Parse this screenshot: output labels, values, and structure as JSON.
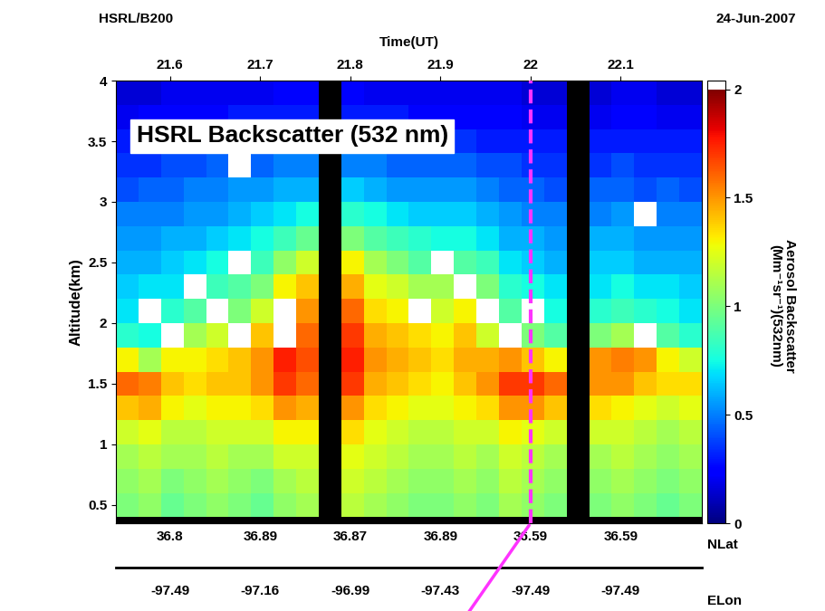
{
  "chart_data": {
    "type": "heatmap",
    "title": "HSRL Backscatter (532 nm)",
    "top_left_text": "HSRL/B200",
    "xlabel": "Time(UT)",
    "date": "24-Jun-2007",
    "ylabel": "Altitude(km)",
    "colorbar_label": "Aerosol Backscatter\n(Mm⁻¹sr⁻¹)(532nm)",
    "xlim": [
      21.54,
      22.19
    ],
    "xticks": [
      21.6,
      21.7,
      21.8,
      21.9,
      22,
      22.1
    ],
    "ylim": [
      0.35,
      4
    ],
    "yticks": [
      0.5,
      1,
      1.5,
      2,
      2.5,
      3,
      3.5,
      4
    ],
    "color_range": [
      0,
      2
    ],
    "color_ticks": [
      0,
      0.5,
      1,
      1.5,
      2
    ],
    "lat_label": "NLat",
    "lat_ticks": [
      {
        "value": 21.6,
        "label": "36.8"
      },
      {
        "value": 21.7,
        "label": "36.89"
      },
      {
        "value": 21.8,
        "label": "36.87"
      },
      {
        "value": 21.9,
        "label": "36.89"
      },
      {
        "value": 22,
        "label": "36.59"
      },
      {
        "value": 22.1,
        "label": "36.59"
      }
    ],
    "lon_label": "ELon",
    "lon_ticks": [
      {
        "value": 21.6,
        "label": "-97.49"
      },
      {
        "value": 21.7,
        "label": "-97.16"
      },
      {
        "value": 21.8,
        "label": "-96.99"
      },
      {
        "value": 21.9,
        "label": "-97.43"
      },
      {
        "value": 22,
        "label": "-97.49"
      },
      {
        "value": 22.1,
        "label": "-97.49"
      }
    ],
    "highlight_time": 22,
    "x_edges": [
      21.54,
      21.565,
      21.59,
      21.615,
      21.64,
      21.665,
      21.69,
      21.715,
      21.74,
      21.765,
      21.79,
      21.815,
      21.84,
      21.865,
      21.89,
      21.915,
      21.94,
      21.965,
      21.99,
      22.015,
      22.04,
      22.065,
      22.09,
      22.115,
      22.14,
      22.165,
      22.19
    ],
    "y_edges": [
      0.4,
      0.6,
      0.8,
      1.0,
      1.2,
      1.4,
      1.6,
      1.8,
      2.0,
      2.2,
      2.4,
      2.6,
      2.8,
      3.0,
      3.2,
      3.4,
      3.6,
      3.8,
      4.0
    ],
    "cells": [
      [
        1.0,
        1.05,
        0.95,
        1.0,
        1.05,
        1.0,
        0.95,
        1.05,
        1.1,
        null,
        1.15,
        1.1,
        1.05,
        1.0,
        1.0,
        1.05,
        1.0,
        1.1,
        1.05,
        1.0,
        null,
        1.0,
        1.05,
        1.0,
        0.95,
        1.0
      ],
      [
        1.05,
        1.1,
        1.0,
        1.05,
        1.1,
        1.05,
        1.0,
        1.1,
        1.15,
        null,
        1.2,
        1.15,
        1.1,
        1.05,
        1.05,
        1.1,
        1.05,
        1.15,
        1.1,
        1.05,
        null,
        1.05,
        1.1,
        1.05,
        1.0,
        1.05
      ],
      [
        1.1,
        1.15,
        1.1,
        1.1,
        1.15,
        1.1,
        1.1,
        1.2,
        1.2,
        null,
        1.25,
        1.2,
        1.15,
        1.1,
        1.1,
        1.15,
        1.1,
        1.2,
        1.15,
        1.1,
        null,
        1.1,
        1.15,
        1.1,
        1.05,
        1.1
      ],
      [
        1.2,
        1.25,
        1.15,
        1.15,
        1.2,
        1.2,
        1.2,
        1.3,
        1.3,
        null,
        1.35,
        1.25,
        1.2,
        1.15,
        1.15,
        1.2,
        1.2,
        1.3,
        1.25,
        1.2,
        null,
        1.2,
        1.2,
        1.15,
        1.1,
        1.15
      ],
      [
        1.4,
        1.45,
        1.3,
        1.25,
        1.3,
        1.3,
        1.35,
        1.5,
        1.45,
        null,
        1.5,
        1.35,
        1.3,
        1.25,
        1.25,
        1.3,
        1.35,
        1.5,
        1.5,
        1.4,
        null,
        1.35,
        1.3,
        1.25,
        1.2,
        1.25
      ],
      [
        1.6,
        1.55,
        1.4,
        1.35,
        1.4,
        1.4,
        1.5,
        1.7,
        1.6,
        null,
        1.7,
        1.45,
        1.4,
        1.35,
        1.3,
        1.4,
        1.5,
        1.7,
        1.7,
        1.6,
        null,
        1.5,
        1.5,
        1.4,
        1.35,
        1.35
      ],
      [
        1.3,
        1.1,
        1.3,
        1.3,
        1.35,
        1.4,
        1.5,
        1.75,
        1.65,
        null,
        1.75,
        1.5,
        1.45,
        1.4,
        1.35,
        1.45,
        1.45,
        1.5,
        1.4,
        1.3,
        null,
        1.5,
        1.55,
        1.5,
        1.3,
        1.2
      ],
      [
        0.8,
        0.75,
        2.5,
        1.1,
        1.2,
        2.5,
        1.4,
        2.5,
        1.6,
        null,
        1.7,
        1.45,
        1.4,
        1.35,
        1.3,
        1.4,
        1.2,
        2.5,
        1.0,
        0.9,
        null,
        1.0,
        1.1,
        2.5,
        0.9,
        0.8
      ],
      [
        0.7,
        2.5,
        0.8,
        0.9,
        2.5,
        1.0,
        1.2,
        2.5,
        1.5,
        null,
        1.6,
        1.35,
        1.3,
        2.5,
        1.2,
        1.3,
        2.5,
        0.9,
        2.5,
        0.75,
        null,
        0.8,
        0.85,
        0.8,
        0.75,
        0.7
      ],
      [
        0.65,
        0.7,
        0.7,
        2.5,
        0.85,
        0.9,
        1.0,
        1.3,
        1.4,
        null,
        1.45,
        1.25,
        1.2,
        1.1,
        1.1,
        2.5,
        1.0,
        0.8,
        0.75,
        0.7,
        null,
        0.7,
        0.75,
        0.7,
        0.7,
        0.65
      ],
      [
        0.6,
        0.6,
        0.65,
        0.7,
        0.75,
        2.5,
        0.85,
        1.05,
        1.2,
        null,
        1.3,
        1.1,
        1.0,
        0.9,
        2.5,
        0.9,
        0.85,
        0.7,
        0.65,
        0.6,
        null,
        0.65,
        0.65,
        0.6,
        0.6,
        0.6
      ],
      [
        0.55,
        0.55,
        0.6,
        0.6,
        0.65,
        0.7,
        0.75,
        0.85,
        0.95,
        null,
        1.0,
        0.9,
        0.85,
        0.8,
        0.75,
        0.75,
        0.7,
        0.6,
        0.6,
        0.55,
        null,
        0.6,
        0.6,
        0.55,
        0.55,
        0.55
      ],
      [
        0.5,
        0.5,
        0.5,
        0.55,
        0.55,
        0.6,
        0.65,
        0.7,
        0.75,
        null,
        0.8,
        0.75,
        0.7,
        0.65,
        0.65,
        0.65,
        0.6,
        0.55,
        0.5,
        0.5,
        null,
        0.5,
        0.55,
        2.5,
        0.5,
        0.5
      ],
      [
        0.4,
        0.45,
        0.45,
        0.5,
        0.5,
        0.55,
        0.55,
        0.6,
        0.6,
        null,
        0.65,
        0.6,
        0.55,
        0.55,
        0.55,
        0.55,
        0.5,
        0.45,
        0.45,
        0.4,
        null,
        0.45,
        0.45,
        0.4,
        0.45,
        0.4
      ],
      [
        0.35,
        0.35,
        0.4,
        0.4,
        0.45,
        2.5,
        0.45,
        0.5,
        0.5,
        null,
        0.5,
        0.5,
        0.45,
        0.45,
        0.45,
        0.45,
        0.4,
        0.4,
        0.35,
        0.35,
        null,
        0.35,
        0.4,
        0.35,
        0.35,
        0.35
      ],
      [
        0.3,
        0.3,
        0.3,
        0.35,
        0.35,
        0.35,
        0.35,
        0.4,
        0.4,
        null,
        0.4,
        0.4,
        0.35,
        0.35,
        0.35,
        0.35,
        0.3,
        0.3,
        0.3,
        0.3,
        null,
        0.3,
        0.3,
        0.3,
        0.3,
        0.3
      ],
      [
        0.2,
        0.25,
        0.25,
        0.25,
        0.25,
        0.3,
        0.3,
        0.3,
        0.3,
        null,
        0.3,
        0.3,
        0.3,
        0.25,
        0.25,
        0.25,
        0.25,
        0.25,
        0.2,
        0.2,
        null,
        0.2,
        0.25,
        0.25,
        0.2,
        0.2
      ],
      [
        0.15,
        0.15,
        0.2,
        0.2,
        0.2,
        0.2,
        0.2,
        0.25,
        0.25,
        null,
        0.25,
        0.2,
        0.2,
        0.2,
        0.2,
        0.2,
        0.2,
        0.2,
        0.15,
        0.15,
        null,
        0.15,
        0.2,
        0.2,
        0.15,
        0.15
      ]
    ]
  }
}
